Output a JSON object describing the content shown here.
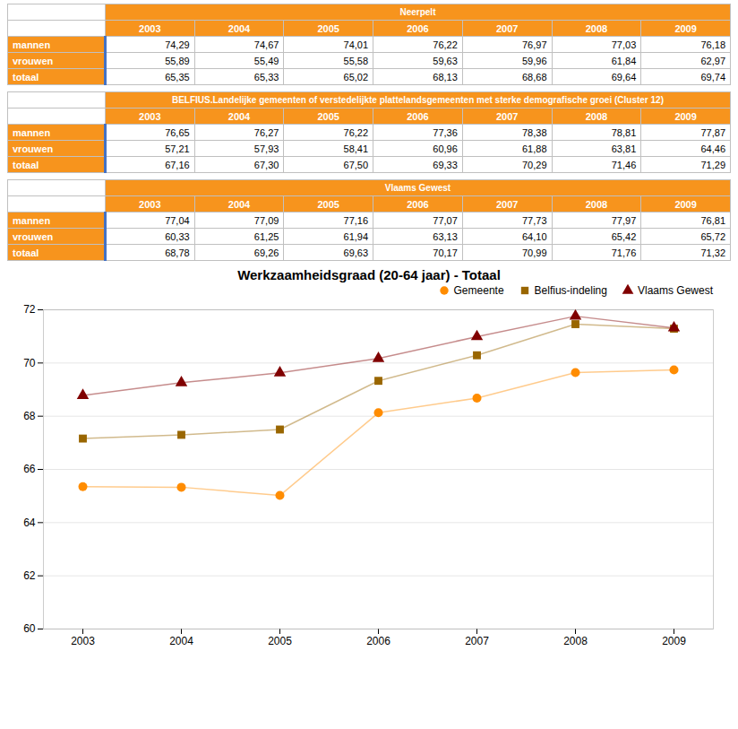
{
  "chart_data": [
    {
      "type": "table",
      "title": "Neerpelt",
      "color": "#F7941D",
      "categories": [
        "2003",
        "2004",
        "2005",
        "2006",
        "2007",
        "2008",
        "2009"
      ],
      "series": [
        {
          "name": "mannen",
          "values": [
            74.29,
            74.67,
            74.01,
            76.22,
            76.97,
            77.03,
            76.18
          ],
          "value_labels": [
            "74,29",
            "74,67",
            "74,01",
            "76,22",
            "76,97",
            "77,03",
            "76,18"
          ]
        },
        {
          "name": "vrouwen",
          "values": [
            55.89,
            55.49,
            55.58,
            59.63,
            59.96,
            61.84,
            62.97
          ],
          "value_labels": [
            "55,89",
            "55,49",
            "55,58",
            "59,63",
            "59,96",
            "61,84",
            "62,97"
          ]
        },
        {
          "name": "totaal",
          "values": [
            65.35,
            65.33,
            65.02,
            68.13,
            68.68,
            69.64,
            69.74
          ],
          "value_labels": [
            "65,35",
            "65,33",
            "65,02",
            "68,13",
            "68,68",
            "69,64",
            "69,74"
          ]
        }
      ]
    },
    {
      "type": "table",
      "title": "BELFIUS.Landelijke gemeenten of verstedelijkte plattelandsgemeenten met sterke demografische groei (Cluster 12)",
      "color": "#F7941D",
      "categories": [
        "2003",
        "2004",
        "2005",
        "2006",
        "2007",
        "2008",
        "2009"
      ],
      "series": [
        {
          "name": "mannen",
          "values": [
            76.65,
            76.27,
            76.22,
            77.36,
            78.38,
            78.81,
            77.87
          ],
          "value_labels": [
            "76,65",
            "76,27",
            "76,22",
            "77,36",
            "78,38",
            "78,81",
            "77,87"
          ]
        },
        {
          "name": "vrouwen",
          "values": [
            57.21,
            57.93,
            58.41,
            60.96,
            61.88,
            63.81,
            64.46
          ],
          "value_labels": [
            "57,21",
            "57,93",
            "58,41",
            "60,96",
            "61,88",
            "63,81",
            "64,46"
          ]
        },
        {
          "name": "totaal",
          "values": [
            67.16,
            67.3,
            67.5,
            69.33,
            70.29,
            71.46,
            71.29
          ],
          "value_labels": [
            "67,16",
            "67,30",
            "67,50",
            "69,33",
            "70,29",
            "71,46",
            "71,29"
          ]
        }
      ]
    },
    {
      "type": "table",
      "title": "Vlaams Gewest",
      "color": "#F7941D",
      "categories": [
        "2003",
        "2004",
        "2005",
        "2006",
        "2007",
        "2008",
        "2009"
      ],
      "series": [
        {
          "name": "mannen",
          "values": [
            77.04,
            77.09,
            77.16,
            77.07,
            77.73,
            77.97,
            76.81
          ],
          "value_labels": [
            "77,04",
            "77,09",
            "77,16",
            "77,07",
            "77,73",
            "77,97",
            "76,81"
          ]
        },
        {
          "name": "vrouwen",
          "values": [
            60.33,
            61.25,
            61.94,
            63.13,
            64.1,
            65.42,
            65.72
          ],
          "value_labels": [
            "60,33",
            "61,25",
            "61,94",
            "63,13",
            "64,10",
            "65,42",
            "65,72"
          ]
        },
        {
          "name": "totaal",
          "values": [
            68.78,
            69.26,
            69.63,
            70.17,
            70.99,
            71.76,
            71.32
          ],
          "value_labels": [
            "68,78",
            "69,26",
            "69,63",
            "70,17",
            "70,99",
            "71,76",
            "71,32"
          ]
        }
      ]
    },
    {
      "type": "line",
      "title": "Werkzaamheidsgraad (20-64 jaar) - Totaal",
      "categories": [
        "2003",
        "2004",
        "2005",
        "2006",
        "2007",
        "2008",
        "2009"
      ],
      "series": [
        {
          "name": "Gemeente",
          "color": "#FF8C00",
          "marker": "circle",
          "values": [
            65.35,
            65.33,
            65.02,
            68.13,
            68.68,
            69.64,
            69.74
          ]
        },
        {
          "name": "Belfius-indeling",
          "color": "#996600",
          "marker": "square",
          "values": [
            67.16,
            67.3,
            67.5,
            69.33,
            70.29,
            71.46,
            71.29
          ]
        },
        {
          "name": "Vlaams Gewest",
          "color": "#800000",
          "marker": "triangle",
          "values": [
            68.78,
            69.26,
            69.63,
            70.17,
            70.99,
            71.76,
            71.32
          ]
        }
      ],
      "ylim": [
        60,
        72
      ],
      "yticks": [
        60,
        62,
        64,
        66,
        68,
        70,
        72
      ],
      "grid": true,
      "legend": "upper right"
    }
  ]
}
